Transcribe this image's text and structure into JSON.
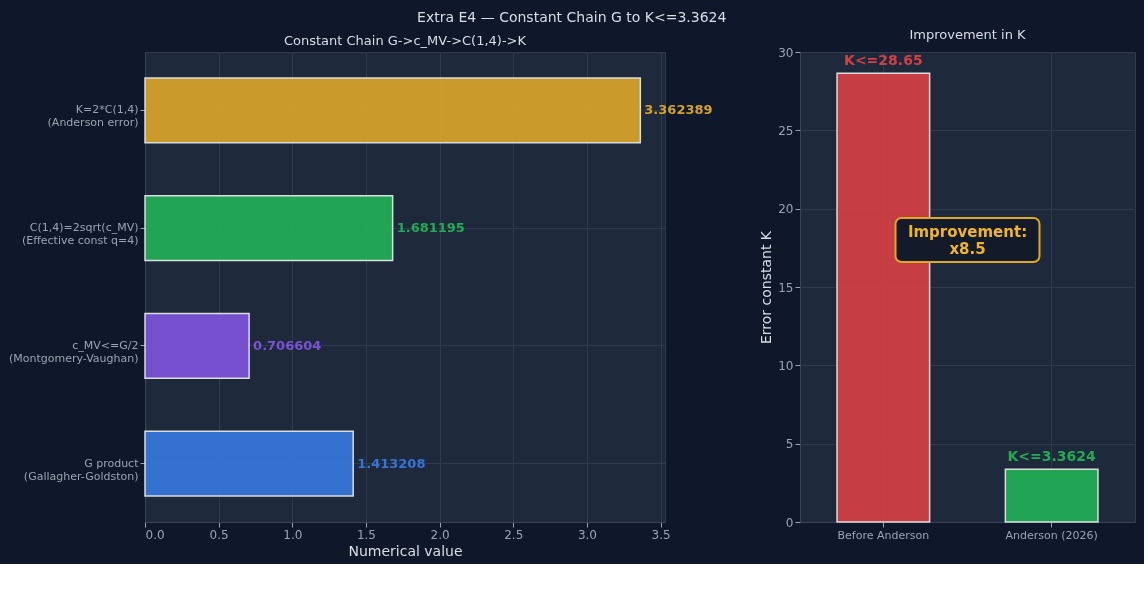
{
  "chart_data": [
    {
      "type": "bar",
      "title": "Constant Chain G->c_MV->C(1,4)->K",
      "orientation": "horizontal",
      "xlabel": "Numerical value",
      "categories": [
        "K=2*C(1,4)\n(Anderson error)",
        "C(1,4)=2sqrt(c_MV)\n(Effective const q=4)",
        "c_MV<=G/2\n(Montgomery-Vaughan)",
        "G product\n(Gallagher-Goldston)"
      ],
      "values": [
        3.362389,
        1.681195,
        0.706604,
        1.413208
      ],
      "colors": [
        "#d4a12a",
        "#22ab55",
        "#7a52d6",
        "#3674d6"
      ],
      "xlim": [
        0,
        3.53
      ],
      "xticks": [
        {
          "value": 0,
          "label": "0.0"
        },
        0.5,
        {
          "value": 1,
          "label": "1.0"
        },
        1.5,
        {
          "value": 2,
          "label": "2.0"
        },
        2.5,
        {
          "value": 3,
          "label": "3.0"
        },
        3.5
      ],
      "grid": true,
      "data_labels": true,
      "annotations": [
        "Extra E4 — Constant Chain G to K<=3.3624"
      ]
    },
    {
      "type": "bar",
      "title": "Improvement in K",
      "ylabel": "Error constant K",
      "categories": [
        "Before Anderson",
        "Anderson (2026)"
      ],
      "values": [
        28.65,
        3.3624
      ],
      "colors": [
        "#d04044",
        "#22ab55"
      ],
      "value_labels": [
        "K<=28.65",
        "K<=3.3624"
      ],
      "ylim": [
        0,
        30
      ],
      "yticks": [
        0,
        5,
        10,
        15,
        20,
        25,
        30
      ],
      "grid": true,
      "annotations": [
        "Improvement:\nx8.5"
      ]
    }
  ]
}
